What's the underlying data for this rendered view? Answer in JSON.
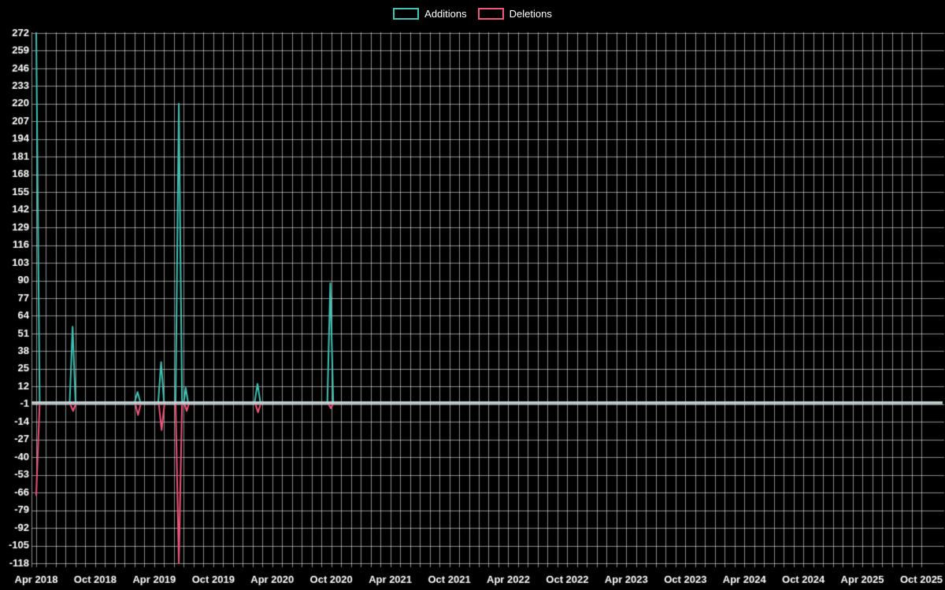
{
  "legend": {
    "items": [
      {
        "label": "Additions",
        "color": "#3fc5b7"
      },
      {
        "label": "Deletions",
        "color": "#f2557d"
      }
    ]
  },
  "chart_data": {
    "type": "line",
    "title": "",
    "background": "#000000",
    "text_color": "#ffffff",
    "grid": {
      "color": "rgba(255,255,255,0.55)",
      "monthly_vertical": true,
      "horizontal": true
    },
    "baseline": {
      "value": 0,
      "color": "#c9d6da",
      "width": 3.5
    },
    "x_unit": "months since Apr 2018",
    "xlim_months": [
      0,
      90
    ],
    "months_between_tick_labels": 6,
    "categories": [
      "Apr 2018",
      "Oct 2018",
      "Apr 2019",
      "Oct 2019",
      "Apr 2020",
      "Oct 2020",
      "Apr 2021",
      "Oct 2021",
      "Apr 2022",
      "Oct 2022",
      "Apr 2023",
      "Oct 2023",
      "Apr 2024",
      "Oct 2024",
      "Apr 2025",
      "Oct 2025"
    ],
    "category_month_offsets": [
      0,
      6,
      12,
      18,
      24,
      30,
      36,
      42,
      48,
      54,
      60,
      66,
      72,
      78,
      84,
      90
    ],
    "y_ticks": [
      272,
      259,
      246,
      233,
      220,
      207,
      194,
      181,
      168,
      155,
      142,
      129,
      116,
      103,
      90,
      77,
      64,
      51,
      38,
      25,
      12,
      -1,
      -14,
      -27,
      -40,
      -53,
      -66,
      -79,
      -92,
      -105,
      -118
    ],
    "ylim": [
      -118,
      272
    ],
    "series": [
      {
        "name": "Additions",
        "color": "#3fc5b7",
        "points": [
          [
            0,
            272
          ],
          [
            0.35,
            0
          ],
          [
            3.4,
            0
          ],
          [
            3.7,
            56
          ],
          [
            4.0,
            0
          ],
          [
            10.0,
            0
          ],
          [
            10.3,
            8
          ],
          [
            10.6,
            0
          ],
          [
            12.4,
            0
          ],
          [
            12.7,
            30
          ],
          [
            13.0,
            0
          ],
          [
            14.17,
            0
          ],
          [
            14.5,
            220
          ],
          [
            14.83,
            0
          ],
          [
            15.0,
            0
          ],
          [
            15.2,
            11
          ],
          [
            15.45,
            0
          ],
          [
            22.2,
            0
          ],
          [
            22.5,
            14
          ],
          [
            22.8,
            0
          ],
          [
            29.6,
            0
          ],
          [
            29.9,
            88
          ],
          [
            30.2,
            0
          ],
          [
            90,
            0
          ]
        ]
      },
      {
        "name": "Deletions",
        "color": "#f2557d",
        "points": [
          [
            0,
            -68
          ],
          [
            0.35,
            0
          ],
          [
            3.4,
            0
          ],
          [
            3.75,
            -6
          ],
          [
            4.05,
            0
          ],
          [
            10.05,
            0
          ],
          [
            10.35,
            -9
          ],
          [
            10.65,
            0
          ],
          [
            12.45,
            0
          ],
          [
            12.75,
            -20
          ],
          [
            13.05,
            0
          ],
          [
            14.17,
            0
          ],
          [
            14.5,
            -118
          ],
          [
            14.83,
            0
          ],
          [
            15.05,
            0
          ],
          [
            15.3,
            -6
          ],
          [
            15.55,
            0
          ],
          [
            22.25,
            0
          ],
          [
            22.55,
            -7
          ],
          [
            22.85,
            0
          ],
          [
            29.65,
            0
          ],
          [
            29.95,
            -4
          ],
          [
            30.25,
            0
          ],
          [
            90,
            0
          ]
        ]
      }
    ]
  }
}
